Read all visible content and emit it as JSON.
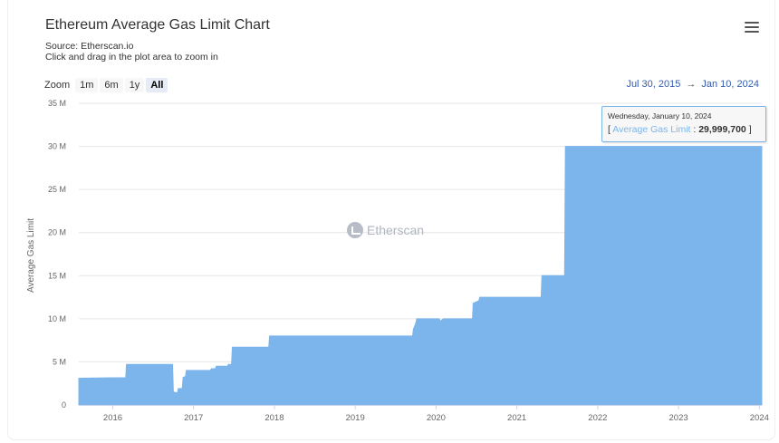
{
  "header": {
    "title": "Ethereum Average Gas Limit Chart",
    "source": "Source: Etherscan.io",
    "hint": "Click and drag in the plot area to zoom in",
    "menu_icon": "hamburger-menu-icon"
  },
  "zoom": {
    "label": "Zoom",
    "buttons": [
      "1m",
      "6m",
      "1y",
      "All"
    ],
    "active": "All"
  },
  "range": {
    "from": "Jul 30, 2015",
    "arrow": "→",
    "to": "Jan 10, 2024"
  },
  "tooltip": {
    "date": "Wednesday, January 10, 2024",
    "open_bracket": "[",
    "series_name": "Average Gas Limit",
    "separator": ":",
    "value": "29,999,700",
    "close_bracket": "]"
  },
  "watermark": {
    "text": "Etherscan",
    "icon": "etherscan-logo-icon"
  },
  "colors": {
    "area": "#7cb5ec",
    "grid": "#e6e6e6",
    "axis_text": "#666666"
  },
  "chart_data": {
    "type": "area",
    "title": "Ethereum Average Gas Limit Chart",
    "xlabel": "",
    "ylabel": "Average Gas Limit",
    "xlim": [
      2015.58,
      2024.03
    ],
    "ylim": [
      0,
      35000000
    ],
    "ytick_values": [
      0,
      5000000,
      10000000,
      15000000,
      20000000,
      25000000,
      30000000,
      35000000
    ],
    "yticks": [
      "0",
      "5 M",
      "10 M",
      "15 M",
      "20 M",
      "25 M",
      "30 M",
      "35 M"
    ],
    "xtick_values": [
      2016,
      2017,
      2018,
      2019,
      2020,
      2021,
      2022,
      2023,
      2024
    ],
    "xticks": [
      "2016",
      "2017",
      "2018",
      "2019",
      "2020",
      "2021",
      "2022",
      "2023",
      "2024"
    ],
    "series": [
      {
        "name": "Average Gas Limit",
        "x": [
          2015.58,
          2015.99,
          2016.0,
          2016.16,
          2016.17,
          2016.74,
          2016.75,
          2016.8,
          2016.81,
          2016.86,
          2016.87,
          2016.9,
          2016.91,
          2016.93,
          2016.94,
          2017.21,
          2017.22,
          2017.27,
          2017.28,
          2017.42,
          2017.43,
          2017.47,
          2017.48,
          2017.93,
          2017.94,
          2019.71,
          2019.72,
          2019.75,
          2019.76,
          2020.04,
          2020.05,
          2020.08,
          2020.09,
          2020.45,
          2020.46,
          2020.53,
          2020.54,
          2021.3,
          2021.31,
          2021.59,
          2021.6,
          2024.03
        ],
        "values": [
          3100000,
          3150000,
          3150000,
          3150000,
          4700000,
          4700000,
          1500000,
          1400000,
          1900000,
          1900000,
          3200000,
          3300000,
          4000000,
          4000000,
          4000000,
          4000000,
          4200000,
          4200000,
          4500000,
          4500000,
          4700000,
          4700000,
          6700000,
          6700000,
          8000000,
          8000000,
          8800000,
          9500000,
          10000000,
          10000000,
          9700000,
          9900000,
          10000000,
          10000000,
          11800000,
          12100000,
          12500000,
          12500000,
          15000000,
          15000000,
          30000000,
          30000000
        ]
      }
    ],
    "legend": "none"
  }
}
